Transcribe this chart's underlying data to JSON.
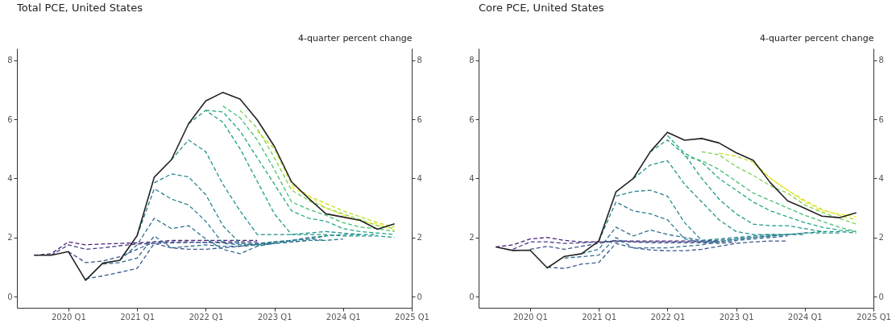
{
  "chart_data": [
    {
      "type": "line",
      "title": "Total PCE, United States",
      "y2label": "4-quarter percent change",
      "categories": [
        null,
        null,
        null,
        "2020 Q1",
        null,
        null,
        null,
        "2021 Q1",
        null,
        null,
        null,
        "2022 Q1",
        null,
        null,
        null,
        "2023 Q1",
        null,
        null,
        null,
        "2024 Q1",
        null,
        null,
        null,
        "2025 Q1"
      ],
      "ylim": [
        -0.38,
        8.4
      ],
      "yticks": [
        0,
        2,
        4,
        6,
        8
      ],
      "y2lim": [
        -0.38,
        8.4
      ],
      "y2ticks": [
        0,
        2,
        4,
        6,
        8
      ],
      "series": [
        {
          "color": "#482173",
          "line_style": "dashed",
          "values": [
            null,
            1.4,
            1.45,
            1.85,
            1.75,
            1.78,
            1.8,
            1.82,
            1.85,
            1.9,
            1.9,
            1.9,
            1.9,
            1.9,
            1.9,
            null,
            null,
            null,
            null,
            null,
            null,
            null,
            null,
            null
          ]
        },
        {
          "color": "#433e85",
          "line_style": "dashed",
          "values": [
            null,
            null,
            1.4,
            1.75,
            1.6,
            1.65,
            1.72,
            1.78,
            1.8,
            1.82,
            1.83,
            1.84,
            1.85,
            1.85,
            1.85,
            null,
            null,
            null,
            null,
            null,
            null,
            null,
            null,
            null
          ]
        },
        {
          "color": "#3b528b",
          "line_style": "dashed",
          "values": [
            null,
            null,
            null,
            1.52,
            1.15,
            1.2,
            1.35,
            1.6,
            1.85,
            1.85,
            1.85,
            1.83,
            1.82,
            1.8,
            1.8,
            1.8,
            null,
            null,
            null,
            null,
            null,
            null,
            null,
            null
          ]
        },
        {
          "color": "#38598c",
          "line_style": "dashed",
          "values": [
            null,
            null,
            null,
            null,
            0.6,
            0.7,
            0.82,
            0.95,
            1.8,
            1.65,
            1.6,
            1.6,
            1.65,
            1.7,
            1.75,
            1.8,
            1.85,
            1.9,
            null,
            null,
            null,
            null,
            null,
            null
          ]
        },
        {
          "color": "#31688e",
          "line_style": "dashed",
          "values": [
            null,
            null,
            null,
            null,
            null,
            1.1,
            1.15,
            1.3,
            2.05,
            1.65,
            1.7,
            1.75,
            1.7,
            1.7,
            1.8,
            1.85,
            1.9,
            1.95,
            1.9,
            null,
            null,
            null,
            null,
            null
          ]
        },
        {
          "color": "#2c728e",
          "line_style": "dashed",
          "values": [
            null,
            null,
            null,
            null,
            null,
            null,
            1.23,
            1.75,
            2.65,
            2.3,
            2.4,
            1.95,
            1.6,
            1.45,
            1.7,
            1.8,
            1.9,
            2.0,
            2.05,
            null,
            null,
            null,
            null,
            null
          ]
        },
        {
          "color": "#287d8e",
          "line_style": "dashed",
          "values": [
            null,
            null,
            null,
            null,
            null,
            null,
            null,
            2.06,
            3.65,
            3.3,
            3.1,
            2.55,
            1.8,
            1.75,
            1.75,
            1.8,
            1.85,
            1.9,
            1.9,
            1.95,
            null,
            null,
            null,
            null
          ]
        },
        {
          "color": "#25858e",
          "line_style": "dashed",
          "values": [
            null,
            null,
            null,
            null,
            null,
            null,
            null,
            null,
            3.85,
            4.15,
            4.05,
            3.45,
            2.4,
            1.8,
            1.75,
            1.85,
            1.9,
            1.95,
            2.05,
            2.1,
            2.1,
            null,
            null,
            null
          ]
        },
        {
          "color": "#21918c",
          "line_style": "dashed",
          "values": [
            null,
            null,
            null,
            null,
            null,
            null,
            null,
            null,
            null,
            4.63,
            5.3,
            4.9,
            3.8,
            2.9,
            2.1,
            2.1,
            2.1,
            2.15,
            2.2,
            2.15,
            2.1,
            2.1,
            null,
            null
          ]
        },
        {
          "color": "#1f9a8a",
          "line_style": "dashed",
          "values": [
            null,
            null,
            null,
            null,
            null,
            null,
            null,
            null,
            null,
            null,
            5.85,
            6.3,
            5.9,
            5.0,
            3.9,
            2.8,
            2.1,
            2.1,
            2.1,
            2.05,
            2.05,
            2.05,
            2.0,
            null
          ]
        },
        {
          "color": "#22a884",
          "line_style": "dashed",
          "values": [
            null,
            null,
            null,
            null,
            null,
            null,
            null,
            null,
            null,
            null,
            null,
            6.3,
            6.25,
            5.6,
            4.7,
            3.8,
            2.9,
            2.65,
            2.55,
            2.3,
            2.2,
            2.15,
            2.1,
            null
          ]
        },
        {
          "color": "#44bf70",
          "line_style": "dashed",
          "values": [
            null,
            null,
            null,
            null,
            null,
            null,
            null,
            null,
            null,
            null,
            null,
            null,
            6.45,
            6.05,
            5.3,
            4.3,
            3.2,
            2.95,
            2.75,
            2.5,
            2.35,
            2.3,
            2.2,
            null
          ]
        },
        {
          "color": "#7ad151",
          "line_style": "dashed",
          "values": [
            null,
            null,
            null,
            null,
            null,
            null,
            null,
            null,
            null,
            null,
            null,
            null,
            null,
            6.3,
            5.7,
            4.7,
            3.6,
            3.25,
            3.0,
            2.8,
            2.6,
            2.4,
            2.3,
            null
          ]
        },
        {
          "color": "#bddf26",
          "line_style": "dashed",
          "values": [
            null,
            null,
            null,
            null,
            null,
            null,
            null,
            null,
            null,
            null,
            null,
            null,
            null,
            null,
            5.6,
            5.0,
            3.8,
            3.4,
            3.15,
            2.9,
            2.7,
            2.5,
            2.35,
            null
          ]
        },
        {
          "color": "#fde725",
          "line_style": "dashed",
          "values": [
            null,
            null,
            null,
            null,
            null,
            null,
            null,
            null,
            null,
            null,
            null,
            null,
            null,
            null,
            null,
            null,
            3.7,
            3.4,
            3.0,
            2.75,
            2.55,
            2.45,
            2.25,
            null
          ]
        },
        {
          "color": "#222222",
          "line_style": "solid",
          "values": [
            null,
            1.4,
            1.4,
            1.52,
            0.55,
            1.13,
            1.23,
            2.06,
            4.04,
            4.63,
            5.85,
            6.62,
            6.91,
            6.68,
            5.98,
            5.08,
            3.88,
            3.32,
            2.8,
            2.69,
            2.58,
            2.28,
            2.46,
            null
          ]
        }
      ]
    },
    {
      "type": "line",
      "title": "Core PCE, United States",
      "y2label": "4-quarter percent change",
      "categories": [
        null,
        null,
        null,
        "2020 Q1",
        null,
        null,
        null,
        "2021 Q1",
        null,
        null,
        null,
        "2022 Q1",
        null,
        null,
        null,
        "2023 Q1",
        null,
        null,
        null,
        "2024 Q1",
        null,
        null,
        null,
        "2025 Q1"
      ],
      "ylim": [
        -0.38,
        8.4
      ],
      "yticks": [
        0,
        2,
        4,
        6,
        8
      ],
      "y2lim": [
        -0.38,
        8.4
      ],
      "y2ticks": [
        0,
        2,
        4,
        6,
        8
      ],
      "series": [
        {
          "color": "#482173",
          "line_style": "dashed",
          "values": [
            null,
            1.68,
            1.75,
            1.95,
            2.0,
            1.9,
            1.85,
            1.85,
            1.88,
            1.88,
            1.88,
            1.88,
            1.88,
            1.88,
            1.88,
            null,
            null,
            null,
            null,
            null,
            null,
            null,
            null,
            null
          ]
        },
        {
          "color": "#433e85",
          "line_style": "dashed",
          "values": [
            null,
            null,
            1.6,
            1.85,
            1.85,
            1.8,
            1.82,
            1.85,
            1.85,
            1.85,
            1.85,
            1.85,
            1.85,
            1.85,
            1.85,
            null,
            null,
            null,
            null,
            null,
            null,
            null,
            null,
            null
          ]
        },
        {
          "color": "#3b528b",
          "line_style": "dashed",
          "values": [
            null,
            null,
            null,
            1.6,
            1.7,
            1.6,
            1.7,
            1.8,
            1.9,
            1.85,
            1.82,
            1.82,
            1.82,
            1.82,
            1.8,
            1.85,
            null,
            null,
            null,
            null,
            null,
            null,
            null,
            null
          ]
        },
        {
          "color": "#38598c",
          "line_style": "dashed",
          "values": [
            null,
            null,
            null,
            null,
            1.0,
            0.95,
            1.1,
            1.15,
            1.8,
            1.65,
            1.58,
            1.55,
            1.55,
            1.6,
            1.7,
            1.8,
            1.85,
            1.88,
            1.88,
            null,
            null,
            null,
            null,
            null
          ]
        },
        {
          "color": "#31688e",
          "line_style": "dashed",
          "values": [
            null,
            null,
            null,
            null,
            null,
            1.3,
            1.35,
            1.4,
            2.0,
            1.65,
            1.65,
            1.65,
            1.7,
            1.75,
            1.85,
            1.9,
            1.95,
            2.0,
            2.05,
            null,
            null,
            null,
            null,
            null
          ]
        },
        {
          "color": "#2c728e",
          "line_style": "dashed",
          "values": [
            null,
            null,
            null,
            null,
            null,
            null,
            1.45,
            1.6,
            2.35,
            2.05,
            2.25,
            2.1,
            2.0,
            1.9,
            1.9,
            1.95,
            2.0,
            2.05,
            2.1,
            null,
            null,
            null,
            null,
            null
          ]
        },
        {
          "color": "#287d8e",
          "line_style": "dashed",
          "values": [
            null,
            null,
            null,
            null,
            null,
            null,
            null,
            1.88,
            3.2,
            2.9,
            2.8,
            2.6,
            1.95,
            1.85,
            1.85,
            1.95,
            2.0,
            2.05,
            2.1,
            2.1,
            null,
            null,
            null,
            null
          ]
        },
        {
          "color": "#25858e",
          "line_style": "dashed",
          "values": [
            null,
            null,
            null,
            null,
            null,
            null,
            null,
            null,
            3.4,
            3.55,
            3.6,
            3.4,
            2.5,
            1.9,
            1.95,
            2.0,
            2.05,
            2.1,
            2.1,
            2.15,
            2.2,
            null,
            null,
            null
          ]
        },
        {
          "color": "#21918c",
          "line_style": "dashed",
          "values": [
            null,
            null,
            null,
            null,
            null,
            null,
            null,
            null,
            null,
            3.99,
            4.45,
            4.6,
            3.8,
            3.2,
            2.6,
            2.2,
            2.1,
            2.1,
            2.1,
            2.15,
            2.15,
            2.15,
            null,
            null
          ]
        },
        {
          "color": "#1f9a8a",
          "line_style": "dashed",
          "values": [
            null,
            null,
            null,
            null,
            null,
            null,
            null,
            null,
            null,
            null,
            4.9,
            5.3,
            4.8,
            4.0,
            3.3,
            2.8,
            2.45,
            2.4,
            2.4,
            2.3,
            2.2,
            2.2,
            2.15,
            null
          ]
        },
        {
          "color": "#22a884",
          "line_style": "dashed",
          "values": [
            null,
            null,
            null,
            null,
            null,
            null,
            null,
            null,
            null,
            null,
            null,
            5.45,
            4.85,
            4.55,
            4.0,
            3.6,
            3.2,
            2.9,
            2.7,
            2.5,
            2.35,
            2.25,
            2.2,
            null
          ]
        },
        {
          "color": "#44bf70",
          "line_style": "dashed",
          "values": [
            null,
            null,
            null,
            null,
            null,
            null,
            null,
            null,
            null,
            null,
            null,
            null,
            4.75,
            4.6,
            4.3,
            3.9,
            3.5,
            3.25,
            3.0,
            2.75,
            2.55,
            2.35,
            2.2,
            null
          ]
        },
        {
          "color": "#7ad151",
          "line_style": "dashed",
          "values": [
            null,
            null,
            null,
            null,
            null,
            null,
            null,
            null,
            null,
            null,
            null,
            null,
            null,
            4.9,
            4.8,
            4.4,
            4.1,
            3.75,
            3.5,
            3.1,
            2.85,
            2.65,
            2.45,
            null
          ]
        },
        {
          "color": "#bddf26",
          "line_style": "dashed",
          "values": [
            null,
            null,
            null,
            null,
            null,
            null,
            null,
            null,
            null,
            null,
            null,
            null,
            null,
            null,
            4.85,
            4.75,
            4.55,
            4.0,
            3.6,
            3.25,
            2.95,
            2.75,
            2.6,
            null
          ]
        },
        {
          "color": "#fde725",
          "line_style": "dashed",
          "values": [
            null,
            null,
            null,
            null,
            null,
            null,
            null,
            null,
            null,
            null,
            null,
            null,
            null,
            null,
            null,
            null,
            4.5,
            4.0,
            3.6,
            3.2,
            2.9,
            2.8,
            2.7,
            null
          ]
        },
        {
          "color": "#222222",
          "line_style": "solid",
          "values": [
            null,
            1.68,
            1.56,
            1.57,
            0.97,
            1.36,
            1.45,
            1.88,
            3.54,
            3.99,
            4.9,
            5.56,
            5.29,
            5.35,
            5.2,
            4.87,
            4.61,
            3.85,
            3.24,
            2.99,
            2.72,
            2.67,
            2.84,
            null
          ]
        }
      ]
    }
  ]
}
